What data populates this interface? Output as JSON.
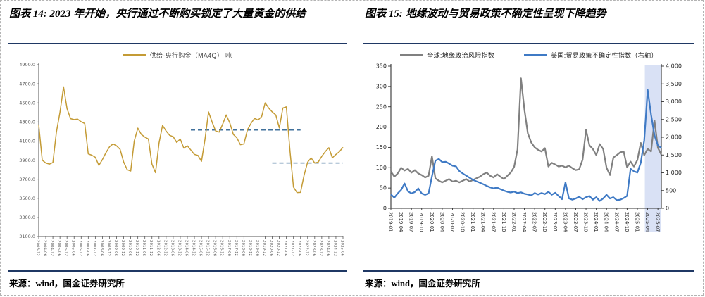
{
  "panels": {
    "left": {
      "title": "图表 14: 2023 年开始，央行通过不断购买锁定了大量黄金的供给",
      "source": "来源：wind，国金证券研究所"
    },
    "right": {
      "title": "图表 15: 地缘波动与贸易政策不确定性呈现下降趋势",
      "source": "来源：wind，国金证券研究所"
    }
  },
  "colors": {
    "gold": "#C49B35",
    "ref_dash": "#41719C",
    "gray": "#808080",
    "blue": "#3F7AC5",
    "band": "#D9E1F5",
    "navy_rule": "#1F3864",
    "axis_text_left": "#595959",
    "axis_text_right": "#262626"
  },
  "chart_data": [
    {
      "type": "line",
      "title": "供给-央行购金（MA4Q） 吨",
      "legend": [
        {
          "label": "供给-央行购金（MA4Q） 吨",
          "color": "#C49B35"
        }
      ],
      "xlabel": "",
      "ylabel": "",
      "ylim": [
        3100,
        4900
      ],
      "grid": false,
      "legend_position": "top",
      "yticks": [
        "4900.0",
        "4700.0",
        "4500.0",
        "4300.0",
        "4100.0",
        "3900.0",
        "3700.0",
        "3500.0",
        "3300.0",
        "3100.0"
      ],
      "xticks": [
        "2003-12",
        "2004-06",
        "2004-12",
        "2005-06",
        "2005-12",
        "2006-06",
        "2006-12",
        "2007-06",
        "2007-12",
        "2008-06",
        "2008-12",
        "2009-06",
        "2009-12",
        "2010-06",
        "2010-12",
        "2011-06",
        "2011-12",
        "2012-06",
        "2012-12",
        "2013-06",
        "2013-12",
        "2014-06",
        "2014-12",
        "2015-06",
        "2015-12",
        "2016-06",
        "2016-12",
        "2017-06",
        "2017-12",
        "2018-06",
        "2018-12",
        "2019-06",
        "2019-12",
        "2020-06",
        "2020-12",
        "2021-06",
        "2021-12",
        "2022-06",
        "2022-12",
        "2023-06",
        "2023-12",
        "2024-06",
        "2024-12",
        "2025-06"
      ],
      "x": [
        "2003-12",
        "2004-03",
        "2004-06",
        "2004-09",
        "2004-12",
        "2005-03",
        "2005-06",
        "2005-09",
        "2005-12",
        "2006-03",
        "2006-06",
        "2006-09",
        "2006-12",
        "2007-03",
        "2007-06",
        "2007-09",
        "2007-12",
        "2008-03",
        "2008-06",
        "2008-09",
        "2008-12",
        "2009-03",
        "2009-06",
        "2009-09",
        "2009-12",
        "2010-03",
        "2010-06",
        "2010-09",
        "2010-12",
        "2011-03",
        "2011-06",
        "2011-09",
        "2011-12",
        "2012-03",
        "2012-06",
        "2012-09",
        "2012-12",
        "2013-03",
        "2013-06",
        "2013-09",
        "2013-12",
        "2014-03",
        "2014-06",
        "2014-09",
        "2014-12",
        "2015-03",
        "2015-06",
        "2015-09",
        "2015-12",
        "2016-03",
        "2016-06",
        "2016-09",
        "2016-12",
        "2017-03",
        "2017-06",
        "2017-09",
        "2017-12",
        "2018-03",
        "2018-06",
        "2018-09",
        "2018-12",
        "2019-03",
        "2019-06",
        "2019-09",
        "2019-12",
        "2020-03",
        "2020-06",
        "2020-09",
        "2020-12",
        "2021-03",
        "2021-06",
        "2021-09",
        "2021-12",
        "2022-03",
        "2022-06",
        "2022-09",
        "2022-12",
        "2023-03",
        "2023-06",
        "2023-09",
        "2023-12",
        "2024-03",
        "2024-06",
        "2024-09",
        "2024-12",
        "2025-03",
        "2025-06"
      ],
      "values": [
        4270,
        3900,
        3870,
        3858,
        3875,
        4195,
        4400,
        4668,
        4440,
        4335,
        4325,
        4330,
        4302,
        4285,
        3965,
        3952,
        3930,
        3845,
        3906,
        3978,
        4040,
        4070,
        4050,
        4014,
        3880,
        3800,
        3786,
        4100,
        4235,
        4170,
        4142,
        4122,
        3860,
        3768,
        4080,
        4265,
        4206,
        4160,
        4146,
        4086,
        4122,
        4026,
        4050,
        4006,
        3960,
        3950,
        3888,
        4120,
        4406,
        4300,
        4206,
        4194,
        4278,
        4374,
        4290,
        4170,
        4134,
        4062,
        4070,
        4218,
        4286,
        4338,
        4320,
        4357,
        4500,
        4446,
        4406,
        4374,
        4237,
        4446,
        4458,
        4000,
        3618,
        3560,
        3562,
        3740,
        3880,
        3923,
        3870,
        3880,
        3940,
        3990,
        4030,
        3925,
        3960,
        3990,
        4035
      ],
      "series_color": "#C49B35",
      "reference_lines": [
        {
          "value": 4216,
          "from": "2014-09",
          "to": "2022-06",
          "style": "dashed",
          "color": "#41719C"
        },
        {
          "value": 3870,
          "from": "2020-06",
          "to": "2025-06",
          "style": "dashed",
          "color": "#41719C"
        }
      ]
    },
    {
      "type": "line",
      "legend": [
        {
          "label": "全球:地缘政治风险指数",
          "color": "#808080",
          "axis": "left"
        },
        {
          "label": "美国:贸易政策不确定性指数（右轴）",
          "color": "#3F7AC5",
          "axis": "right"
        }
      ],
      "ylim_left": [
        0,
        350
      ],
      "ylim_right": [
        0,
        4000
      ],
      "grid": false,
      "legend_position": "top",
      "yticks_left": [
        "350",
        "300",
        "250",
        "200",
        "150",
        "100",
        "50",
        "0"
      ],
      "yticks_right": [
        "4,000",
        "3,500",
        "3,000",
        "2,500",
        "2,000",
        "1,500",
        "1,000",
        "500",
        "0"
      ],
      "xticks": [
        "2019-01",
        "2019-04",
        "2019-07",
        "2019-10",
        "2020-01",
        "2020-04",
        "2020-07",
        "2020-10",
        "2021-01",
        "2021-04",
        "2021-07",
        "2021-10",
        "2022-01",
        "2022-04",
        "2022-07",
        "2022-10",
        "2023-01",
        "2023-04",
        "2023-07",
        "2023-10",
        "2024-01",
        "2024-04",
        "2024-07",
        "2024-10",
        "2025-01",
        "2025-04",
        "2025-07"
      ],
      "x": [
        "2019-01",
        "2019-02",
        "2019-03",
        "2019-04",
        "2019-05",
        "2019-06",
        "2019-07",
        "2019-08",
        "2019-09",
        "2019-10",
        "2019-11",
        "2019-12",
        "2020-01",
        "2020-02",
        "2020-03",
        "2020-04",
        "2020-05",
        "2020-06",
        "2020-07",
        "2020-08",
        "2020-09",
        "2020-10",
        "2020-11",
        "2020-12",
        "2021-01",
        "2021-02",
        "2021-03",
        "2021-04",
        "2021-05",
        "2021-06",
        "2021-07",
        "2021-08",
        "2021-09",
        "2021-10",
        "2021-11",
        "2021-12",
        "2022-01",
        "2022-02",
        "2022-03",
        "2022-04",
        "2022-05",
        "2022-06",
        "2022-07",
        "2022-08",
        "2022-09",
        "2022-10",
        "2022-11",
        "2022-12",
        "2023-01",
        "2023-02",
        "2023-03",
        "2023-04",
        "2023-05",
        "2023-06",
        "2023-07",
        "2023-08",
        "2023-09",
        "2023-10",
        "2023-11",
        "2023-12",
        "2024-01",
        "2024-02",
        "2024-03",
        "2024-04",
        "2024-05",
        "2024-06",
        "2024-07",
        "2024-08",
        "2024-09",
        "2024-10",
        "2024-11",
        "2024-12",
        "2025-01",
        "2025-02",
        "2025-03",
        "2025-04",
        "2025-05",
        "2025-06",
        "2025-07",
        "2025-08"
      ],
      "series": [
        {
          "name": "全球:地缘政治风险指数",
          "axis": "left",
          "color": "#808080",
          "values": [
            91,
            78,
            86,
            100,
            93,
            97,
            88,
            94,
            86,
            82,
            76,
            80,
            128,
            74,
            68,
            64,
            68,
            72,
            66,
            68,
            64,
            68,
            72,
            66,
            70,
            74,
            78,
            84,
            88,
            80,
            76,
            84,
            78,
            72,
            80,
            88,
            102,
            145,
            320,
            243,
            185,
            162,
            150,
            144,
            140,
            148,
            103,
            112,
            108,
            103,
            105,
            101,
            105,
            99,
            94,
            96,
            120,
            193,
            155,
            146,
            131,
            158,
            146,
            100,
            82,
            125,
            131,
            138,
            140,
            101,
            115,
            103,
            119,
            161,
            131,
            146,
            140,
            216,
            149,
            132
          ]
        },
        {
          "name": "美国:贸易政策不确定性指数（右轴）",
          "axis": "right",
          "color": "#3F7AC5",
          "values": [
            390,
            300,
            420,
            520,
            700,
            480,
            420,
            460,
            560,
            420,
            380,
            420,
            900,
            1340,
            1390,
            1300,
            1310,
            1260,
            1200,
            1180,
            1050,
            980,
            920,
            860,
            800,
            760,
            720,
            680,
            630,
            590,
            560,
            585,
            540,
            500,
            465,
            445,
            470,
            430,
            450,
            410,
            390,
            365,
            430,
            390,
            430,
            400,
            465,
            382,
            437,
            347,
            260,
            730,
            280,
            243,
            278,
            326,
            257,
            312,
            347,
            243,
            312,
            208,
            278,
            382,
            278,
            312,
            229,
            243,
            290,
            350,
            1110,
            1042,
            1007,
            1285,
            1910,
            3330,
            2639,
            2049,
            1771,
            1700
          ]
        }
      ],
      "highlight_band": {
        "from": "2025-04",
        "to": "2025-08",
        "color": "#D9E1F5"
      }
    }
  ]
}
